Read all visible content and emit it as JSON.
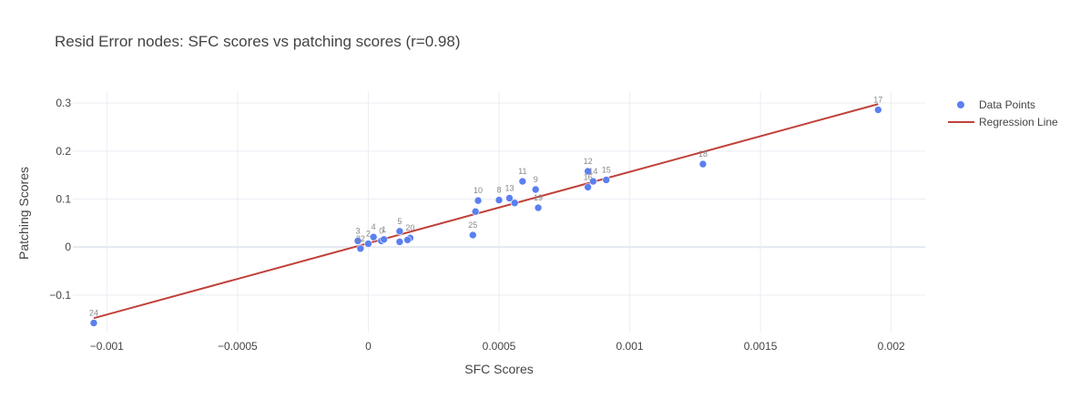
{
  "chart_data": {
    "type": "scatter",
    "title": "Resid Error nodes: SFC scores vs patching scores (r=0.98)",
    "xlabel": "SFC Scores",
    "ylabel": "Patching Scores",
    "xlim": [
      -0.00113,
      0.00213
    ],
    "ylim": [
      -0.178,
      0.325
    ],
    "x_ticks": [
      -0.001,
      -0.0005,
      0,
      0.0005,
      0.001,
      0.0015,
      0.002
    ],
    "x_tick_labels": [
      "−0.001",
      "−0.0005",
      "0",
      "0.0005",
      "0.001",
      "0.0015",
      "0.002"
    ],
    "y_ticks": [
      -0.1,
      0,
      0.1,
      0.2,
      0.3
    ],
    "y_tick_labels": [
      "−0.1",
      "0",
      "0.1",
      "0.2",
      "0.3"
    ],
    "grid": true,
    "legend_position": "top-right",
    "series": [
      {
        "name": "Data Points",
        "kind": "markers",
        "color": "#5b7ff0",
        "points": [
          {
            "label": "0",
            "x": 5e-05,
            "y": 0.013
          },
          {
            "label": "1",
            "x": 6e-05,
            "y": 0.016
          },
          {
            "label": "2",
            "x": 0.0,
            "y": 0.007
          },
          {
            "label": "3",
            "x": -4e-05,
            "y": 0.013
          },
          {
            "label": "4",
            "x": 2e-05,
            "y": 0.021
          },
          {
            "label": "5",
            "x": 0.00012,
            "y": 0.033
          },
          {
            "label": "8",
            "x": 0.0005,
            "y": 0.098
          },
          {
            "label": "9",
            "x": 0.00064,
            "y": 0.12
          },
          {
            "label": "10",
            "x": 0.00042,
            "y": 0.097
          },
          {
            "label": "11",
            "x": 0.00059,
            "y": 0.137
          },
          {
            "label": "12",
            "x": 0.00084,
            "y": 0.158
          },
          {
            "label": "13",
            "x": 0.00054,
            "y": 0.102
          },
          {
            "label": "14",
            "x": 0.00086,
            "y": 0.137
          },
          {
            "label": "15",
            "x": 0.00091,
            "y": 0.14
          },
          {
            "label": "16",
            "x": 0.00084,
            "y": 0.125
          },
          {
            "label": "17",
            "x": 0.00195,
            "y": 0.286
          },
          {
            "label": "18",
            "x": 0.00128,
            "y": 0.173
          },
          {
            "label": "19",
            "x": 0.00065,
            "y": 0.082
          },
          {
            "label": "20",
            "x": 0.00016,
            "y": 0.019
          },
          {
            "label": "22",
            "x": -3e-05,
            "y": -0.003
          },
          {
            "label": "24",
            "x": -0.00105,
            "y": -0.158
          },
          {
            "label": "25",
            "x": 0.0004,
            "y": 0.025
          },
          {
            "label": "",
            "x": 0.00012,
            "y": 0.011
          },
          {
            "label": "",
            "x": 0.00015,
            "y": 0.015
          },
          {
            "label": "",
            "x": 0.00041,
            "y": 0.074
          },
          {
            "label": "",
            "x": 0.00056,
            "y": 0.092
          }
        ]
      },
      {
        "name": "Regression Line",
        "kind": "line",
        "color": "#c0413a",
        "x": [
          -0.00105,
          0.00195
        ],
        "y": [
          -0.148,
          0.298
        ]
      }
    ]
  }
}
